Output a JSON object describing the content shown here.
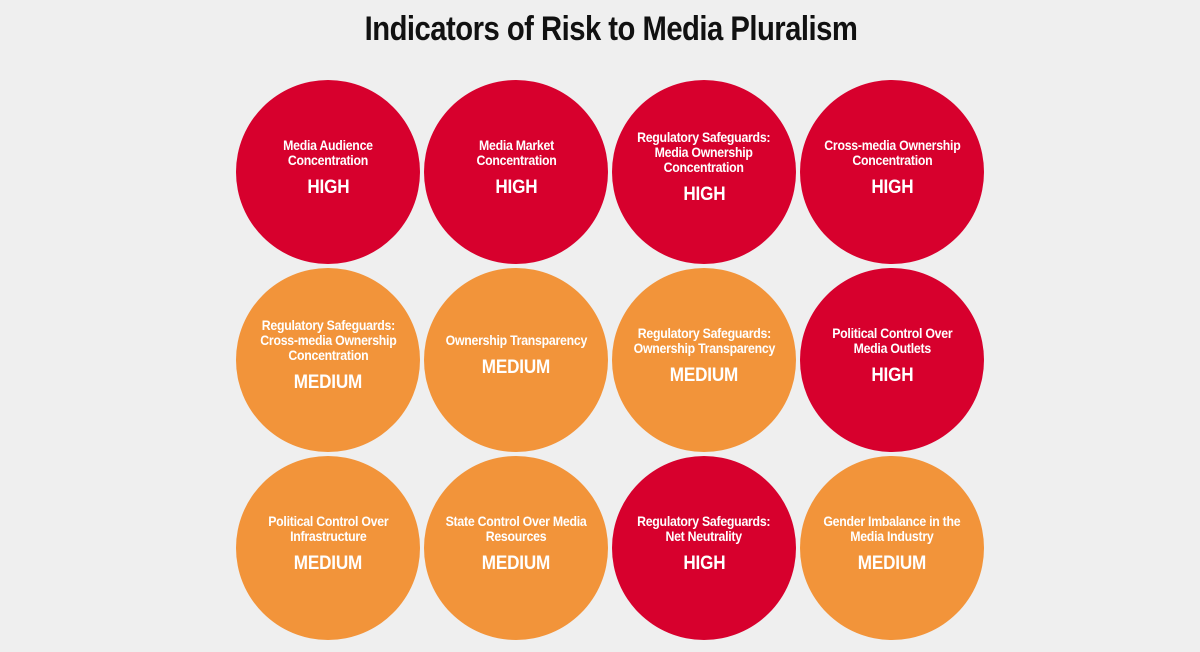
{
  "title": "Indicators of Risk to Media Pluralism",
  "colors": {
    "high": "#d7002d",
    "medium": "#f2943a",
    "background": "#efefef"
  },
  "indicators": [
    {
      "label": "Media Audience\nConcentration",
      "level": "HIGH"
    },
    {
      "label": "Media Market\nConcentration",
      "level": "HIGH"
    },
    {
      "label": "Regulatory Safeguards:\nMedia Ownership\nConcentration",
      "level": "HIGH"
    },
    {
      "label": "Cross-media Ownership\nConcentration",
      "level": "HIGH"
    },
    {
      "label": "Regulatory Safeguards:\nCross-media Ownership\nConcentration",
      "level": "MEDIUM"
    },
    {
      "label": "Ownership Transparency",
      "level": "MEDIUM"
    },
    {
      "label": "Regulatory Safeguards:\nOwnership Transparency",
      "level": "MEDIUM"
    },
    {
      "label": "Political Control Over\nMedia Outlets",
      "level": "HIGH"
    },
    {
      "label": "Political Control Over\nInfrastructure",
      "level": "MEDIUM"
    },
    {
      "label": "State Control Over Media\nResources",
      "level": "MEDIUM"
    },
    {
      "label": "Regulatory Safeguards:\nNet Neutrality",
      "level": "HIGH"
    },
    {
      "label": "Gender Imbalance in the\nMedia Industry",
      "level": "MEDIUM"
    }
  ]
}
